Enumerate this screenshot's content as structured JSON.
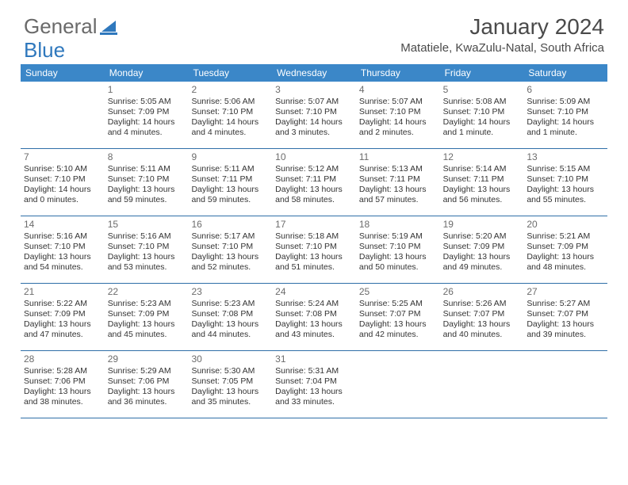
{
  "brand": {
    "part1": "General",
    "part2": "Blue"
  },
  "title": "January 2024",
  "location": "Matatiele, KwaZulu-Natal, South Africa",
  "colors": {
    "header_bg": "#3b87c8",
    "header_text": "#ffffff",
    "rule": "#2f6fa8",
    "daynum": "#6c6c6c",
    "body_text": "#333333",
    "brand_gray": "#6a6a6a",
    "brand_blue": "#2f78bd"
  },
  "dow": [
    "Sunday",
    "Monday",
    "Tuesday",
    "Wednesday",
    "Thursday",
    "Friday",
    "Saturday"
  ],
  "weeks": [
    [
      null,
      {
        "n": "1",
        "sr": "Sunrise: 5:05 AM",
        "ss": "Sunset: 7:09 PM",
        "d1": "Daylight: 14 hours",
        "d2": "and 4 minutes."
      },
      {
        "n": "2",
        "sr": "Sunrise: 5:06 AM",
        "ss": "Sunset: 7:10 PM",
        "d1": "Daylight: 14 hours",
        "d2": "and 4 minutes."
      },
      {
        "n": "3",
        "sr": "Sunrise: 5:07 AM",
        "ss": "Sunset: 7:10 PM",
        "d1": "Daylight: 14 hours",
        "d2": "and 3 minutes."
      },
      {
        "n": "4",
        "sr": "Sunrise: 5:07 AM",
        "ss": "Sunset: 7:10 PM",
        "d1": "Daylight: 14 hours",
        "d2": "and 2 minutes."
      },
      {
        "n": "5",
        "sr": "Sunrise: 5:08 AM",
        "ss": "Sunset: 7:10 PM",
        "d1": "Daylight: 14 hours",
        "d2": "and 1 minute."
      },
      {
        "n": "6",
        "sr": "Sunrise: 5:09 AM",
        "ss": "Sunset: 7:10 PM",
        "d1": "Daylight: 14 hours",
        "d2": "and 1 minute."
      }
    ],
    [
      {
        "n": "7",
        "sr": "Sunrise: 5:10 AM",
        "ss": "Sunset: 7:10 PM",
        "d1": "Daylight: 14 hours",
        "d2": "and 0 minutes."
      },
      {
        "n": "8",
        "sr": "Sunrise: 5:11 AM",
        "ss": "Sunset: 7:10 PM",
        "d1": "Daylight: 13 hours",
        "d2": "and 59 minutes."
      },
      {
        "n": "9",
        "sr": "Sunrise: 5:11 AM",
        "ss": "Sunset: 7:11 PM",
        "d1": "Daylight: 13 hours",
        "d2": "and 59 minutes."
      },
      {
        "n": "10",
        "sr": "Sunrise: 5:12 AM",
        "ss": "Sunset: 7:11 PM",
        "d1": "Daylight: 13 hours",
        "d2": "and 58 minutes."
      },
      {
        "n": "11",
        "sr": "Sunrise: 5:13 AM",
        "ss": "Sunset: 7:11 PM",
        "d1": "Daylight: 13 hours",
        "d2": "and 57 minutes."
      },
      {
        "n": "12",
        "sr": "Sunrise: 5:14 AM",
        "ss": "Sunset: 7:11 PM",
        "d1": "Daylight: 13 hours",
        "d2": "and 56 minutes."
      },
      {
        "n": "13",
        "sr": "Sunrise: 5:15 AM",
        "ss": "Sunset: 7:10 PM",
        "d1": "Daylight: 13 hours",
        "d2": "and 55 minutes."
      }
    ],
    [
      {
        "n": "14",
        "sr": "Sunrise: 5:16 AM",
        "ss": "Sunset: 7:10 PM",
        "d1": "Daylight: 13 hours",
        "d2": "and 54 minutes."
      },
      {
        "n": "15",
        "sr": "Sunrise: 5:16 AM",
        "ss": "Sunset: 7:10 PM",
        "d1": "Daylight: 13 hours",
        "d2": "and 53 minutes."
      },
      {
        "n": "16",
        "sr": "Sunrise: 5:17 AM",
        "ss": "Sunset: 7:10 PM",
        "d1": "Daylight: 13 hours",
        "d2": "and 52 minutes."
      },
      {
        "n": "17",
        "sr": "Sunrise: 5:18 AM",
        "ss": "Sunset: 7:10 PM",
        "d1": "Daylight: 13 hours",
        "d2": "and 51 minutes."
      },
      {
        "n": "18",
        "sr": "Sunrise: 5:19 AM",
        "ss": "Sunset: 7:10 PM",
        "d1": "Daylight: 13 hours",
        "d2": "and 50 minutes."
      },
      {
        "n": "19",
        "sr": "Sunrise: 5:20 AM",
        "ss": "Sunset: 7:09 PM",
        "d1": "Daylight: 13 hours",
        "d2": "and 49 minutes."
      },
      {
        "n": "20",
        "sr": "Sunrise: 5:21 AM",
        "ss": "Sunset: 7:09 PM",
        "d1": "Daylight: 13 hours",
        "d2": "and 48 minutes."
      }
    ],
    [
      {
        "n": "21",
        "sr": "Sunrise: 5:22 AM",
        "ss": "Sunset: 7:09 PM",
        "d1": "Daylight: 13 hours",
        "d2": "and 47 minutes."
      },
      {
        "n": "22",
        "sr": "Sunrise: 5:23 AM",
        "ss": "Sunset: 7:09 PM",
        "d1": "Daylight: 13 hours",
        "d2": "and 45 minutes."
      },
      {
        "n": "23",
        "sr": "Sunrise: 5:23 AM",
        "ss": "Sunset: 7:08 PM",
        "d1": "Daylight: 13 hours",
        "d2": "and 44 minutes."
      },
      {
        "n": "24",
        "sr": "Sunrise: 5:24 AM",
        "ss": "Sunset: 7:08 PM",
        "d1": "Daylight: 13 hours",
        "d2": "and 43 minutes."
      },
      {
        "n": "25",
        "sr": "Sunrise: 5:25 AM",
        "ss": "Sunset: 7:07 PM",
        "d1": "Daylight: 13 hours",
        "d2": "and 42 minutes."
      },
      {
        "n": "26",
        "sr": "Sunrise: 5:26 AM",
        "ss": "Sunset: 7:07 PM",
        "d1": "Daylight: 13 hours",
        "d2": "and 40 minutes."
      },
      {
        "n": "27",
        "sr": "Sunrise: 5:27 AM",
        "ss": "Sunset: 7:07 PM",
        "d1": "Daylight: 13 hours",
        "d2": "and 39 minutes."
      }
    ],
    [
      {
        "n": "28",
        "sr": "Sunrise: 5:28 AM",
        "ss": "Sunset: 7:06 PM",
        "d1": "Daylight: 13 hours",
        "d2": "and 38 minutes."
      },
      {
        "n": "29",
        "sr": "Sunrise: 5:29 AM",
        "ss": "Sunset: 7:06 PM",
        "d1": "Daylight: 13 hours",
        "d2": "and 36 minutes."
      },
      {
        "n": "30",
        "sr": "Sunrise: 5:30 AM",
        "ss": "Sunset: 7:05 PM",
        "d1": "Daylight: 13 hours",
        "d2": "and 35 minutes."
      },
      {
        "n": "31",
        "sr": "Sunrise: 5:31 AM",
        "ss": "Sunset: 7:04 PM",
        "d1": "Daylight: 13 hours",
        "d2": "and 33 minutes."
      },
      null,
      null,
      null
    ]
  ]
}
